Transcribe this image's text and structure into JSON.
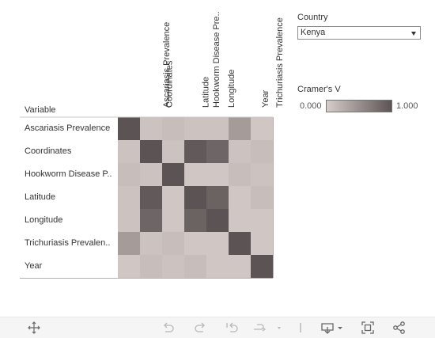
{
  "chart_data": {
    "type": "heatmap",
    "title": "",
    "row_header": "Variable",
    "variables": [
      "Ascariasis Prevalence",
      "Coordinates",
      "Hookworm Disease Pre..",
      "Latitude",
      "Longitude",
      "Trichuriasis Prevalence",
      "Year"
    ],
    "row_labels": [
      "Ascariasis Prevalence",
      "Coordinates",
      "Hookworm Disease P..",
      "Latitude",
      "Longitude",
      "Trichuriasis Prevalen..",
      "Year"
    ],
    "values": [
      [
        1.0,
        0.08,
        0.12,
        0.08,
        0.08,
        0.4,
        0.05
      ],
      [
        0.08,
        1.0,
        0.08,
        0.95,
        0.85,
        0.08,
        0.12
      ],
      [
        0.12,
        0.08,
        1.0,
        0.05,
        0.05,
        0.12,
        0.08
      ],
      [
        0.08,
        0.95,
        0.05,
        1.0,
        0.88,
        0.05,
        0.12
      ],
      [
        0.08,
        0.85,
        0.05,
        0.88,
        1.0,
        0.05,
        0.05
      ],
      [
        0.4,
        0.08,
        0.12,
        0.05,
        0.05,
        1.0,
        0.05
      ],
      [
        0.05,
        0.12,
        0.08,
        0.12,
        0.05,
        0.05,
        1.0
      ]
    ],
    "color_scale": {
      "title": "Cramer's V",
      "min": 0.0,
      "max": 1.0,
      "min_label": "0.000",
      "max_label": "1.000",
      "low_color": "#d6ccc9",
      "high_color": "#5c5354"
    },
    "legend_placement": "top-right"
  },
  "filter": {
    "title": "Country",
    "selected": "Kenya"
  },
  "toolbar": {
    "icons": [
      "move-icon",
      "undo-icon",
      "redo-icon",
      "revert-icon",
      "refresh-icon",
      "download-icon",
      "fullscreen-icon",
      "share-icon"
    ]
  }
}
